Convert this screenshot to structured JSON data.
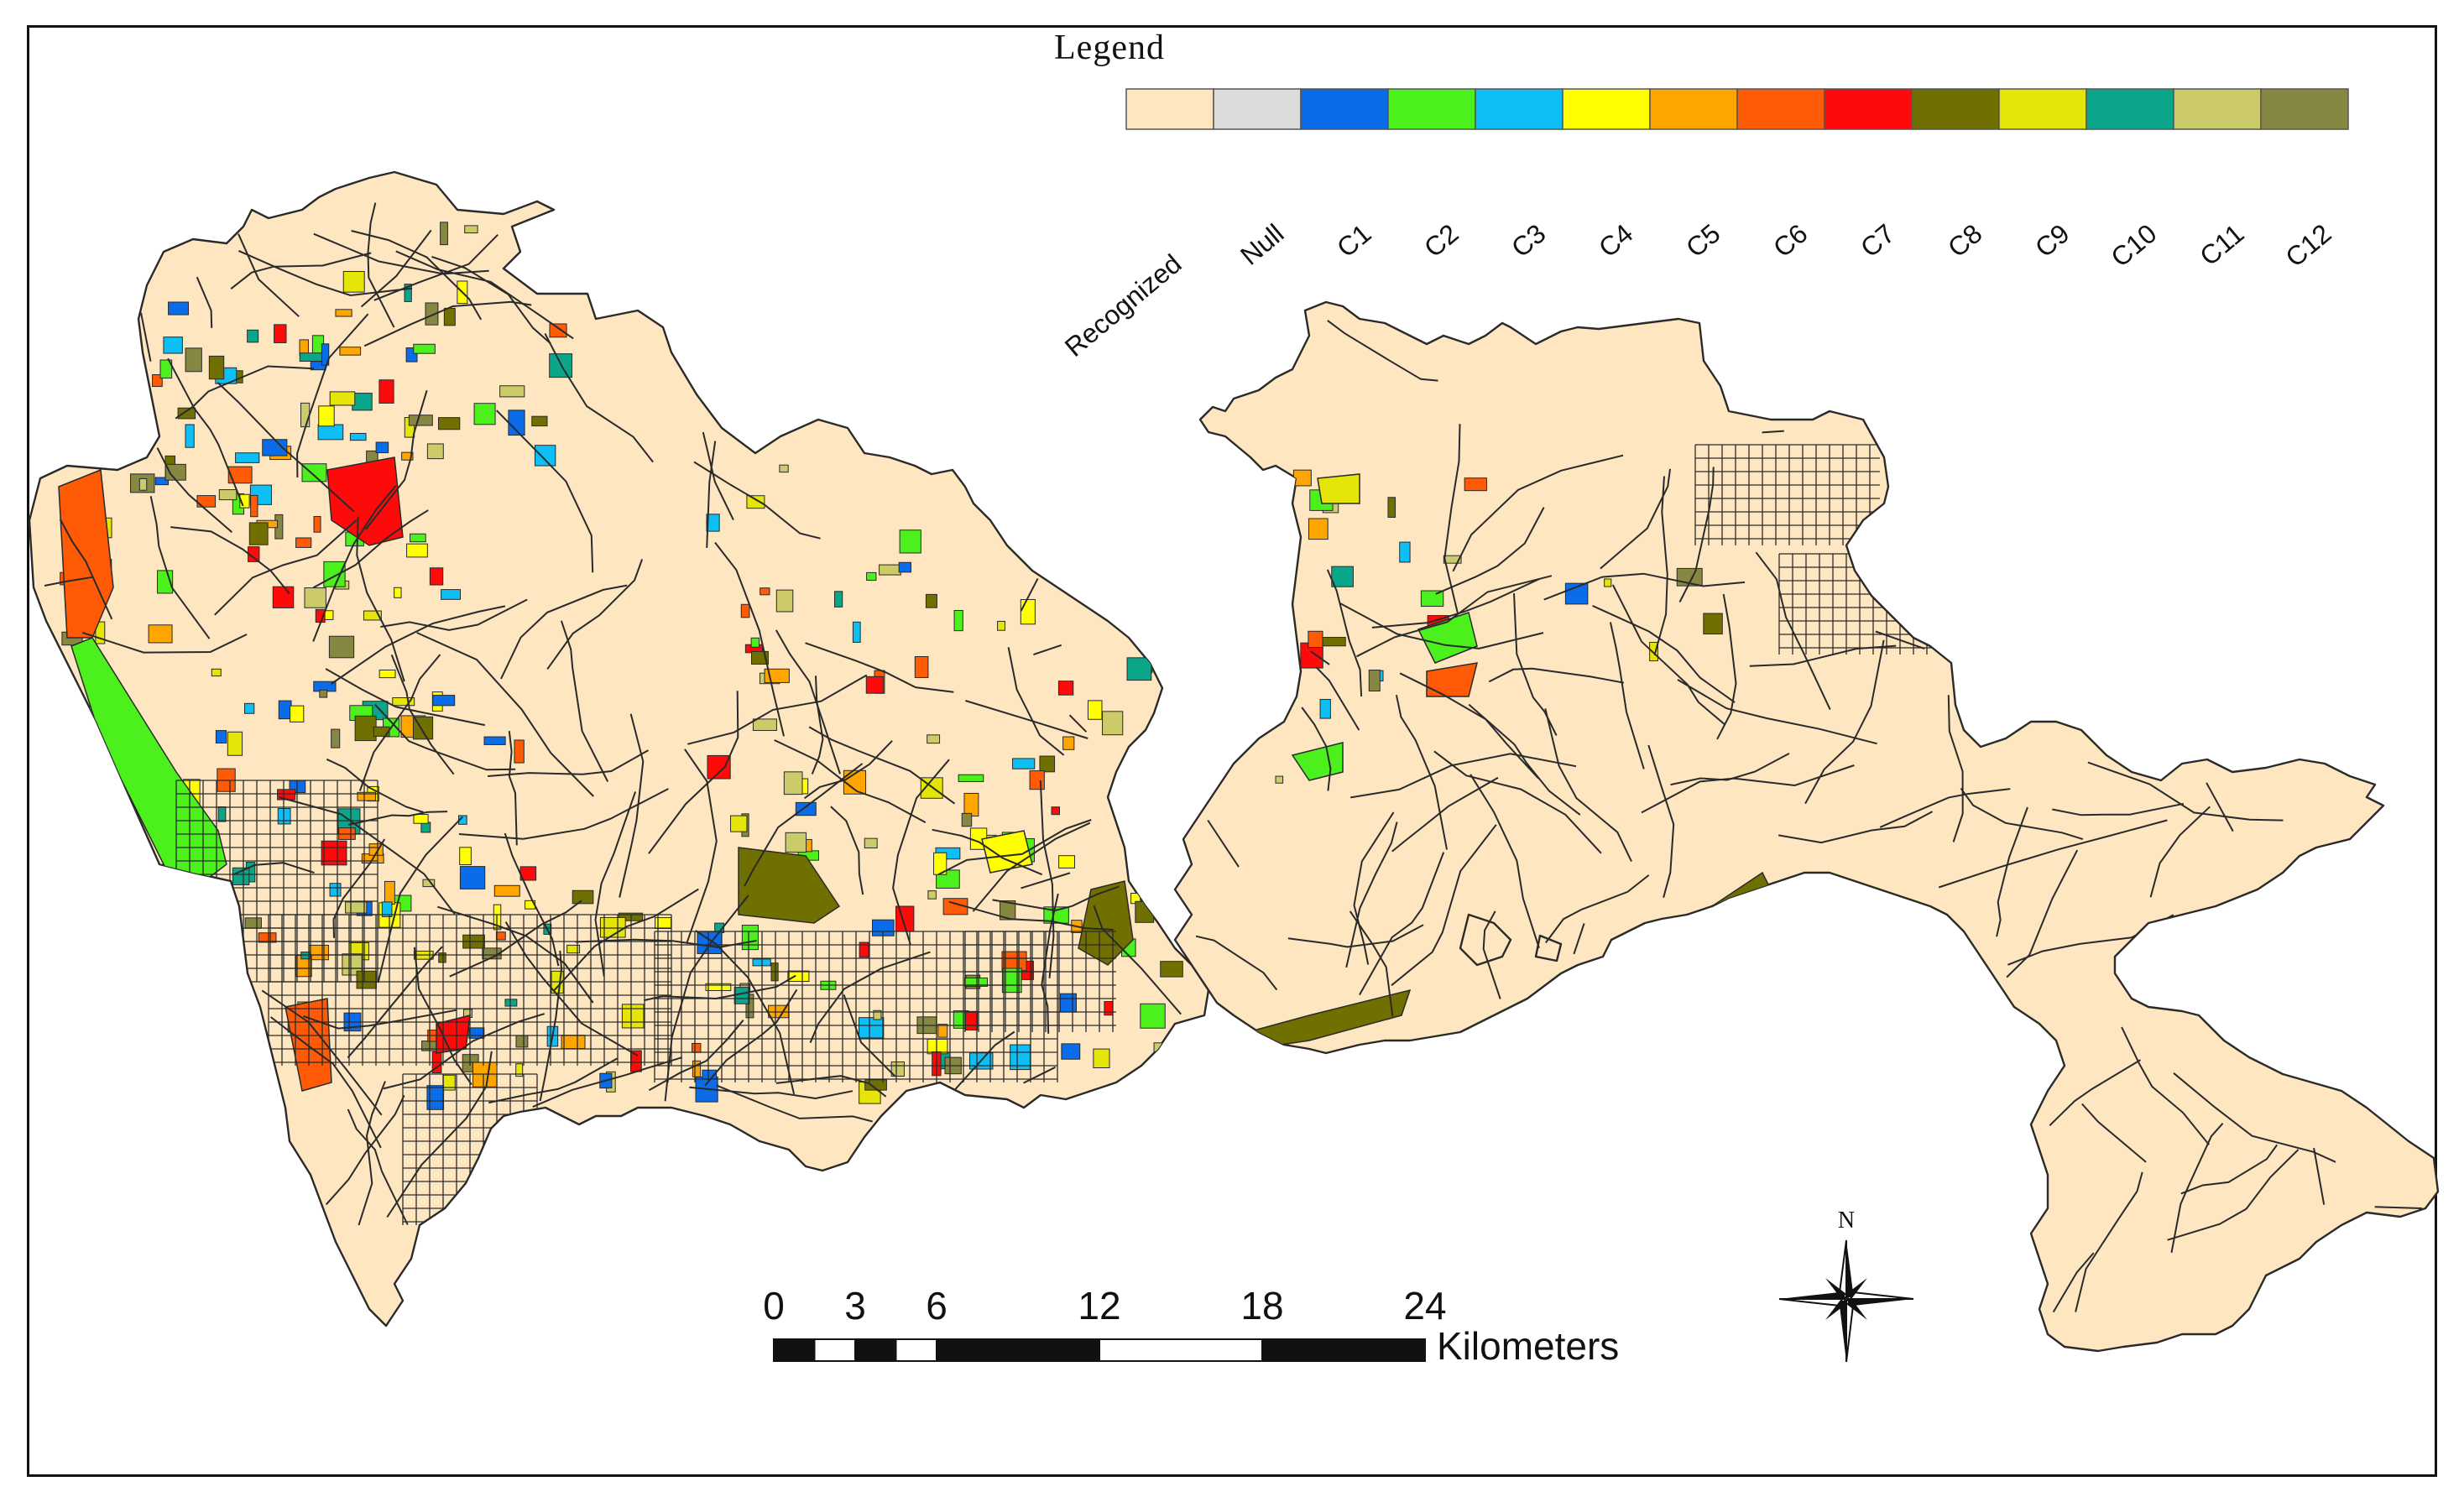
{
  "legend": {
    "title": "Legend",
    "classes": [
      {
        "label": "Recognized",
        "color": "#FDE6C0"
      },
      {
        "label": "Null",
        "color": "#DCDCDC"
      },
      {
        "label": "C1",
        "color": "#0A6CE8"
      },
      {
        "label": "C2",
        "color": "#4CF01C"
      },
      {
        "label": "C3",
        "color": "#0DBFF5"
      },
      {
        "label": "C4",
        "color": "#FFFF00"
      },
      {
        "label": "C5",
        "color": "#FFA500"
      },
      {
        "label": "C6",
        "color": "#FF5A05"
      },
      {
        "label": "C7",
        "color": "#FF0A0A"
      },
      {
        "label": "C8",
        "color": "#707000"
      },
      {
        "label": "C9",
        "color": "#E5E50A"
      },
      {
        "label": "C10",
        "color": "#0BA68A"
      },
      {
        "label": "C11",
        "color": "#CBCB6A"
      },
      {
        "label": "C12",
        "color": "#878744"
      }
    ]
  },
  "scale_bar": {
    "ticks": [
      "0",
      "3",
      "6",
      "12",
      "18",
      "24"
    ],
    "unit": "Kilometers"
  },
  "north_arrow": {
    "label": "N",
    "icon": "north-arrow-icon"
  },
  "map": {
    "base_color": "#FDE6C0",
    "road_color": "#2a2a2a"
  }
}
